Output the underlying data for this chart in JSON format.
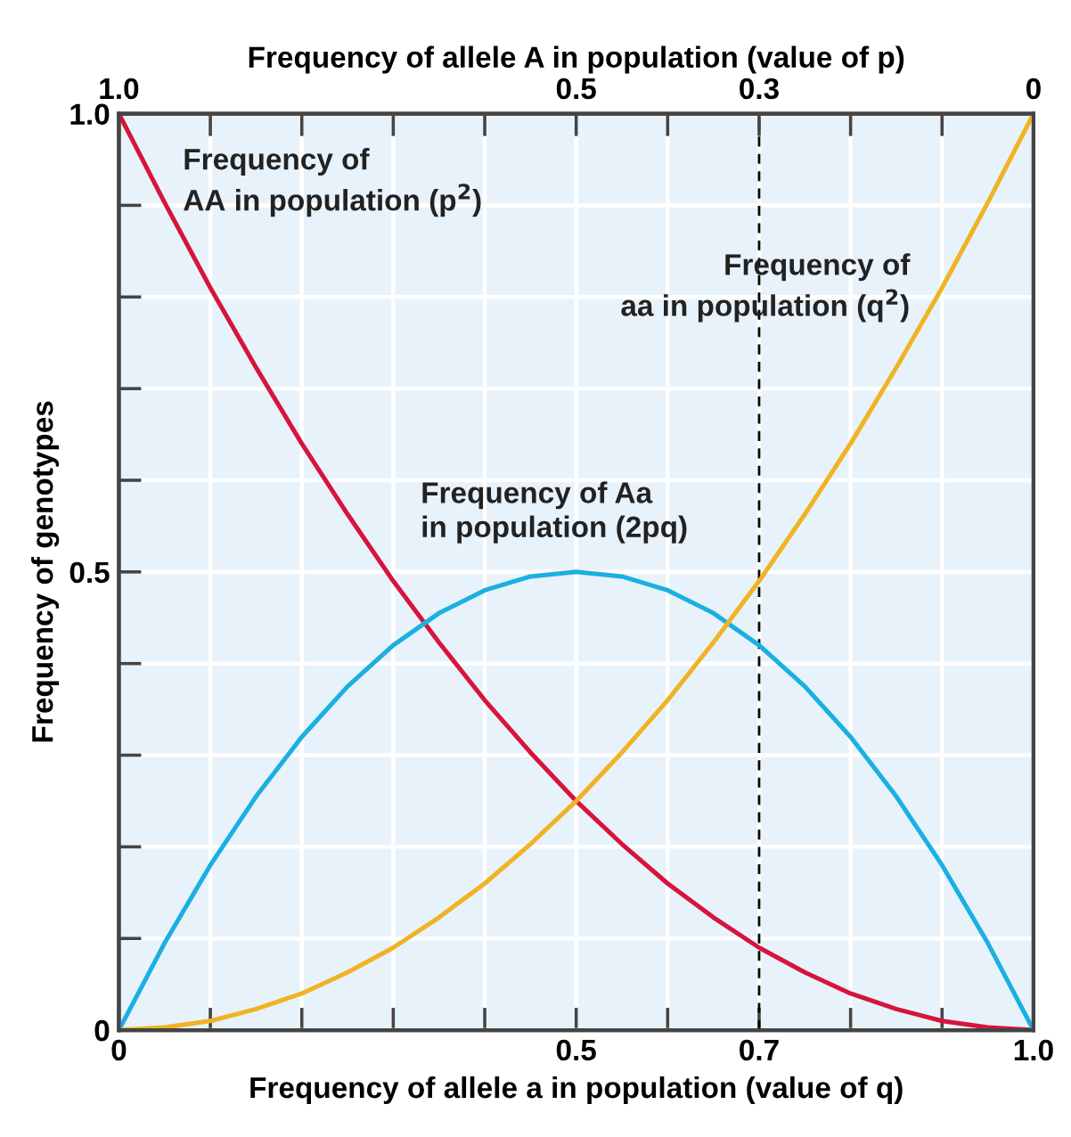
{
  "chart_data": {
    "type": "line",
    "xlabel": "Frequency of allele a in population (value of q)",
    "x2label": "Frequency of allele A in population (value of p)",
    "ylabel": "Frequency of genotypes",
    "x": [
      0,
      0.05,
      0.1,
      0.15,
      0.2,
      0.25,
      0.3,
      0.35,
      0.4,
      0.45,
      0.5,
      0.55,
      0.6,
      0.65,
      0.7,
      0.75,
      0.8,
      0.85,
      0.9,
      0.95,
      1
    ],
    "series": [
      {
        "name": "Frequency of\nAA in population (p$^{2}$)",
        "color": "#d7143c",
        "values": [
          1,
          0.903,
          0.81,
          0.723,
          0.64,
          0.563,
          0.49,
          0.423,
          0.36,
          0.303,
          0.25,
          0.203,
          0.16,
          0.123,
          0.09,
          0.063,
          0.04,
          0.023,
          0.01,
          0.003,
          0
        ]
      },
      {
        "name": "Frequency of Aa\nin population (2pq)",
        "color": "#1ab0e0",
        "values": [
          0,
          0.095,
          0.18,
          0.255,
          0.32,
          0.375,
          0.42,
          0.455,
          0.48,
          0.495,
          0.5,
          0.495,
          0.48,
          0.455,
          0.42,
          0.375,
          0.32,
          0.255,
          0.18,
          0.095,
          0
        ]
      },
      {
        "name": "Frequency of\naa in population (q$^{2}$)",
        "color": "#f0b323",
        "values": [
          0,
          0.003,
          0.01,
          0.023,
          0.04,
          0.063,
          0.09,
          0.123,
          0.16,
          0.203,
          0.25,
          0.303,
          0.36,
          0.423,
          0.49,
          0.563,
          0.64,
          0.723,
          0.81,
          0.903,
          1
        ]
      }
    ],
    "xlim": [
      0,
      1
    ],
    "ylim": [
      0,
      1
    ],
    "x2lim": [
      1,
      0
    ],
    "xticks": [
      0,
      {
        "value": 0.1,
        "label": null
      },
      {
        "value": 0.2,
        "label": null
      },
      {
        "value": 0.3,
        "label": null
      },
      {
        "value": 0.4,
        "label": null
      },
      0.5,
      {
        "value": 0.6,
        "label": null
      },
      0.7,
      {
        "value": 0.8,
        "label": null
      },
      {
        "value": 0.9,
        "label": null
      },
      {
        "value": 1,
        "label": "1.0"
      }
    ],
    "x2ticks": [
      {
        "value": 1,
        "label": "1.0"
      },
      {
        "value": 0.9,
        "label": null
      },
      {
        "value": 0.8,
        "label": null
      },
      {
        "value": 0.7,
        "label": null
      },
      {
        "value": 0.6,
        "label": null
      },
      0.5,
      {
        "value": 0.4,
        "label": null
      },
      0.3,
      {
        "value": 0.2,
        "label": null
      },
      {
        "value": 0.1,
        "label": null
      },
      0
    ],
    "yticks": [
      0,
      {
        "value": 0.1,
        "label": null
      },
      {
        "value": 0.2,
        "label": null
      },
      {
        "value": 0.3,
        "label": null
      },
      {
        "value": 0.4,
        "label": null
      },
      0.5,
      {
        "value": 0.6,
        "label": null
      },
      {
        "value": 0.7,
        "label": null
      },
      {
        "value": 0.8,
        "label": null
      },
      {
        "value": 0.9,
        "label": null
      },
      {
        "value": 1,
        "label": "1.0"
      }
    ],
    "ref_lines": [
      {
        "axis": "x",
        "value": 0.7,
        "color": "#000000",
        "line_style": "dashed"
      }
    ],
    "grid": true,
    "marker": "none",
    "line_style": "solid",
    "legend": false
  }
}
